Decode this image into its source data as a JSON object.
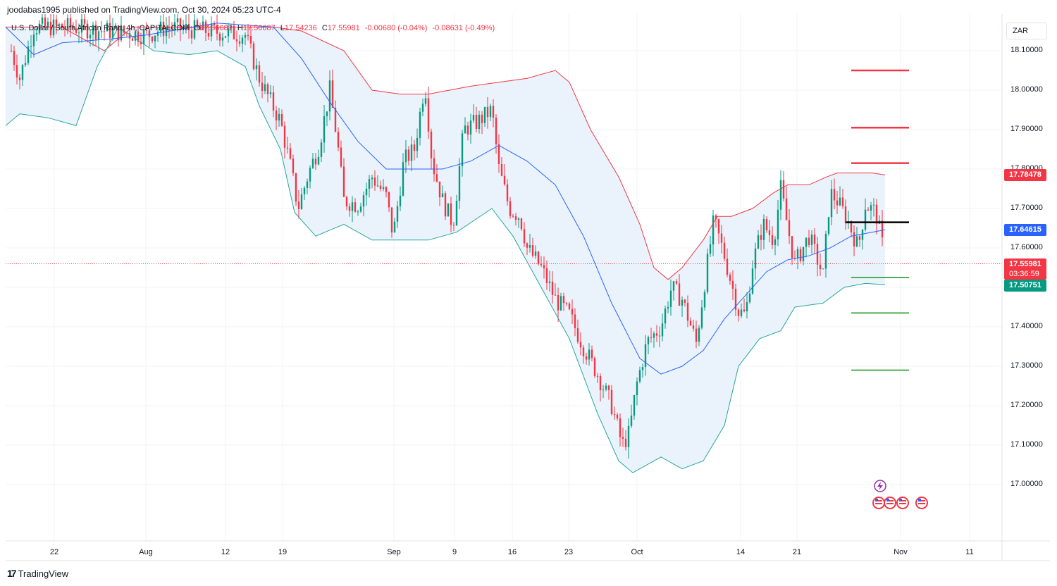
{
  "header": {
    "publisher_line": "joodabas1995 published on TradingView.com, Oct 30, 2024 05:23 UTC-4"
  },
  "legend": {
    "symbol": "U.S. Dollar / South African Rand, 4h, CAPITALCOM",
    "open_key": "O",
    "open": "17.56681",
    "high_key": "H",
    "high": "17.56687",
    "low_key": "L",
    "low": "17.54236",
    "close_key": "C",
    "close": "17.55981",
    "change": "-0.00680 (-0.04%)",
    "change2": "-0.08631 (-0.49%)"
  },
  "currency_button": "ZAR",
  "brand": {
    "logo": "17",
    "name": "TradingView"
  },
  "price_tags": {
    "upper_band": "17.78478",
    "middle_band": "17.64615",
    "last_price": "17.55981",
    "countdown": "03:36:59",
    "lower_band": "17.50751"
  },
  "colors": {
    "up": "#089981",
    "down": "#f23645",
    "upper_band": "#f23645",
    "lower_band": "#26a69a",
    "basis": "#2962ff",
    "band_fill": "#eaf3fb",
    "resistance": "#f23645",
    "support": "#4caf50",
    "pivot": "#000000",
    "grid": "#f0f3fa"
  },
  "event_icons": [
    "lightning-event-icon",
    "us-flag-icon",
    "us-flag-icon",
    "us-flag-icon",
    "us-flag-icon"
  ],
  "chart_data": {
    "type": "candlestick",
    "title": "U.S. Dollar / South African Rand, 4h, CAPITALCOM",
    "ylim": [
      16.93,
      18.16
    ],
    "y_ticks": [
      "18.10000",
      "18.00000",
      "17.90000",
      "17.80000",
      "17.70000",
      "17.60000",
      "17.50000",
      "17.40000",
      "17.30000",
      "17.20000",
      "17.10000",
      "17.00000"
    ],
    "x_ticks": [
      "22",
      "Aug",
      "12",
      "19",
      "Sep",
      "9",
      "16",
      "23",
      "Oct",
      "14",
      "21",
      "Nov",
      "11"
    ],
    "grid": true,
    "bollinger_upper": [
      [
        0,
        18.16
      ],
      [
        30,
        18.16
      ],
      [
        80,
        18.16
      ],
      [
        140,
        18.1
      ],
      [
        180,
        18.16
      ],
      [
        300,
        18.16
      ],
      [
        380,
        18.16
      ],
      [
        420,
        18.15
      ],
      [
        480,
        18.1
      ],
      [
        520,
        18.0
      ],
      [
        560,
        17.99
      ],
      [
        600,
        17.99
      ],
      [
        660,
        18.01
      ],
      [
        700,
        18.02
      ],
      [
        740,
        18.03
      ],
      [
        780,
        18.05
      ],
      [
        800,
        18.02
      ],
      [
        830,
        17.9
      ],
      [
        870,
        17.78
      ],
      [
        900,
        17.66
      ],
      [
        920,
        17.55
      ],
      [
        940,
        17.52
      ],
      [
        960,
        17.55
      ],
      [
        990,
        17.62
      ],
      [
        1010,
        17.68
      ],
      [
        1030,
        17.68
      ],
      [
        1060,
        17.7
      ],
      [
        1090,
        17.74
      ],
      [
        1110,
        17.76
      ],
      [
        1140,
        17.76
      ],
      [
        1165,
        17.78
      ],
      [
        1180,
        17.79
      ],
      [
        1210,
        17.79
      ],
      [
        1230,
        17.79
      ],
      [
        1248,
        17.785
      ]
    ],
    "bollinger_basis": [
      [
        0,
        18.16
      ],
      [
        40,
        18.09
      ],
      [
        80,
        18.12
      ],
      [
        150,
        18.13
      ],
      [
        200,
        18.14
      ],
      [
        300,
        18.17
      ],
      [
        380,
        18.16
      ],
      [
        420,
        18.08
      ],
      [
        460,
        17.97
      ],
      [
        500,
        17.87
      ],
      [
        540,
        17.8
      ],
      [
        580,
        17.8
      ],
      [
        620,
        17.8
      ],
      [
        660,
        17.82
      ],
      [
        700,
        17.86
      ],
      [
        740,
        17.82
      ],
      [
        780,
        17.76
      ],
      [
        820,
        17.63
      ],
      [
        860,
        17.46
      ],
      [
        900,
        17.32
      ],
      [
        930,
        17.28
      ],
      [
        960,
        17.3
      ],
      [
        990,
        17.34
      ],
      [
        1020,
        17.42
      ],
      [
        1050,
        17.48
      ],
      [
        1080,
        17.54
      ],
      [
        1110,
        17.57
      ],
      [
        1140,
        17.58
      ],
      [
        1170,
        17.6
      ],
      [
        1200,
        17.63
      ],
      [
        1230,
        17.64
      ],
      [
        1248,
        17.646
      ]
    ],
    "bollinger_lower": [
      [
        0,
        17.91
      ],
      [
        20,
        17.94
      ],
      [
        60,
        17.93
      ],
      [
        100,
        17.91
      ],
      [
        130,
        18.06
      ],
      [
        160,
        18.16
      ],
      [
        210,
        18.1
      ],
      [
        260,
        18.09
      ],
      [
        300,
        18.1
      ],
      [
        340,
        18.06
      ],
      [
        360,
        17.96
      ],
      [
        390,
        17.85
      ],
      [
        410,
        17.69
      ],
      [
        440,
        17.63
      ],
      [
        480,
        17.66
      ],
      [
        520,
        17.62
      ],
      [
        560,
        17.62
      ],
      [
        600,
        17.62
      ],
      [
        640,
        17.64
      ],
      [
        690,
        17.7
      ],
      [
        720,
        17.63
      ],
      [
        760,
        17.5
      ],
      [
        800,
        17.37
      ],
      [
        840,
        17.18
      ],
      [
        870,
        17.06
      ],
      [
        890,
        17.03
      ],
      [
        930,
        17.07
      ],
      [
        960,
        17.04
      ],
      [
        990,
        17.06
      ],
      [
        1020,
        17.15
      ],
      [
        1040,
        17.3
      ],
      [
        1070,
        17.37
      ],
      [
        1100,
        17.39
      ],
      [
        1120,
        17.45
      ],
      [
        1160,
        17.46
      ],
      [
        1190,
        17.5
      ],
      [
        1220,
        17.51
      ],
      [
        1248,
        17.507
      ]
    ],
    "price_path": [
      [
        8,
        18.1
      ],
      [
        20,
        18.03
      ],
      [
        40,
        18.16
      ],
      [
        90,
        18.16
      ],
      [
        200,
        18.14
      ],
      [
        230,
        18.16
      ],
      [
        340,
        18.14
      ],
      [
        360,
        18.03
      ],
      [
        390,
        17.92
      ],
      [
        405,
        17.8
      ],
      [
        415,
        17.7
      ],
      [
        430,
        17.79
      ],
      [
        445,
        17.86
      ],
      [
        460,
        18.0
      ],
      [
        470,
        17.88
      ],
      [
        480,
        17.72
      ],
      [
        500,
        17.71
      ],
      [
        520,
        17.78
      ],
      [
        540,
        17.73
      ],
      [
        550,
        17.63
      ],
      [
        565,
        17.82
      ],
      [
        580,
        17.85
      ],
      [
        595,
        18.02
      ],
      [
        605,
        17.82
      ],
      [
        620,
        17.72
      ],
      [
        635,
        17.66
      ],
      [
        650,
        17.9
      ],
      [
        670,
        17.92
      ],
      [
        690,
        17.95
      ],
      [
        700,
        17.8
      ],
      [
        715,
        17.7
      ],
      [
        730,
        17.68
      ],
      [
        740,
        17.6
      ],
      [
        760,
        17.55
      ],
      [
        780,
        17.47
      ],
      [
        800,
        17.43
      ],
      [
        820,
        17.35
      ],
      [
        840,
        17.28
      ],
      [
        860,
        17.2
      ],
      [
        875,
        17.1
      ],
      [
        885,
        17.13
      ],
      [
        895,
        17.25
      ],
      [
        910,
        17.36
      ],
      [
        930,
        17.4
      ],
      [
        945,
        17.5
      ],
      [
        960,
        17.47
      ],
      [
        980,
        17.36
      ],
      [
        995,
        17.55
      ],
      [
        1005,
        17.67
      ],
      [
        1020,
        17.58
      ],
      [
        1040,
        17.44
      ],
      [
        1050,
        17.43
      ],
      [
        1060,
        17.56
      ],
      [
        1075,
        17.66
      ],
      [
        1090,
        17.62
      ],
      [
        1100,
        17.75
      ],
      [
        1110,
        17.65
      ],
      [
        1120,
        17.56
      ],
      [
        1140,
        17.63
      ],
      [
        1160,
        17.53
      ],
      [
        1170,
        17.74
      ],
      [
        1180,
        17.72
      ],
      [
        1195,
        17.67
      ],
      [
        1210,
        17.6
      ],
      [
        1220,
        17.71
      ],
      [
        1235,
        17.69
      ],
      [
        1245,
        17.6
      ],
      [
        1248,
        17.56
      ]
    ],
    "resistance_levels": [
      18.05,
      17.905,
      17.815
    ],
    "support_levels": [
      17.525,
      17.435,
      17.29
    ],
    "pivot_level": 17.665,
    "last_price": 17.55981
  }
}
